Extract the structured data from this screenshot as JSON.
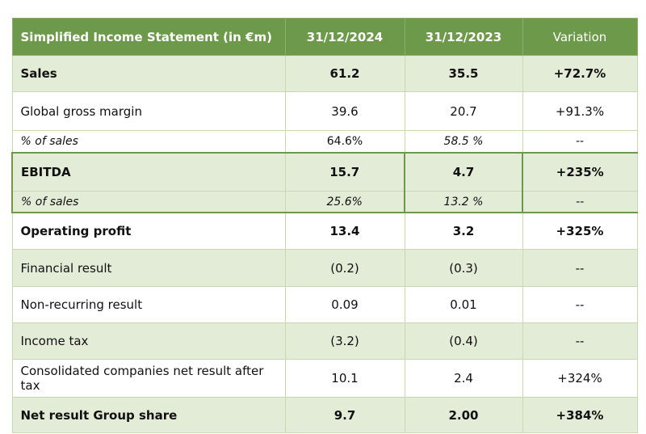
{
  "header": {
    "title": "Simplified Income Statement (in €m)",
    "col_2024": "31/12/2024",
    "col_2023": "31/12/2023",
    "col_var": "Variation"
  },
  "rows": [
    {
      "label": "Sales",
      "v2024": "61.2",
      "v2023": "35.5",
      "var": "+72.7%"
    },
    {
      "label": "Global gross margin",
      "v2024": "39.6",
      "v2023": "20.7",
      "var": "+91.3%"
    },
    {
      "label": "% of sales",
      "v2024": "64.6%",
      "v2023": "58.5 %",
      "var": "--"
    },
    {
      "label": "EBITDA",
      "v2024": "15.7",
      "v2023": "4.7",
      "var": "+235%"
    },
    {
      "label": "% of sales",
      "v2024": "25.6%",
      "v2023": "13.2 %",
      "var": "--"
    },
    {
      "label": "Operating profit",
      "v2024": "13.4",
      "v2023": "3.2",
      "var": "+325%"
    },
    {
      "label": "Financial result",
      "v2024": "(0.2)",
      "v2023": "(0.3)",
      "var": "--"
    },
    {
      "label": "Non-recurring result",
      "v2024": "0.09",
      "v2023": "0.01",
      "var": "--"
    },
    {
      "label": "Income tax",
      "v2024": "(3.2)",
      "v2023": "(0.4)",
      "var": "--"
    },
    {
      "label": "Consolidated companies net result after tax",
      "v2024": "10.1",
      "v2023": "2.4",
      "var": "+324%"
    },
    {
      "label": "Net result Group share",
      "v2024": "9.7",
      "v2023": "2.00",
      "var": "+384%"
    }
  ],
  "colors": {
    "header_bg": "#6d9a4a",
    "row_green": "#e3ecd6",
    "border": "#c8d8b2"
  }
}
